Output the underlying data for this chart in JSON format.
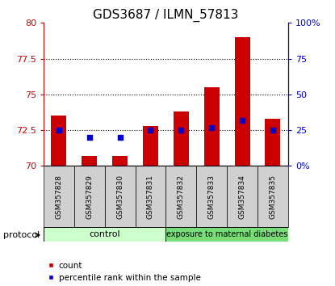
{
  "title": "GDS3687 / ILMN_57813",
  "samples": [
    "GSM357828",
    "GSM357829",
    "GSM357830",
    "GSM357831",
    "GSM357832",
    "GSM357833",
    "GSM357834",
    "GSM357835"
  ],
  "count_values": [
    73.5,
    70.7,
    70.7,
    72.8,
    73.8,
    75.5,
    79.0,
    73.3
  ],
  "percentile_values": [
    25,
    20,
    20,
    25,
    25,
    27,
    32,
    25
  ],
  "ylim_left": [
    70,
    80
  ],
  "ylim_right": [
    0,
    100
  ],
  "yticks_left": [
    70,
    72.5,
    75,
    77.5,
    80
  ],
  "yticks_right": [
    0,
    25,
    50,
    75,
    100
  ],
  "ytick_labels_left": [
    "70",
    "72.5",
    "75",
    "77.5",
    "80"
  ],
  "ytick_labels_right": [
    "0%",
    "25",
    "50",
    "75",
    "100%"
  ],
  "left_color": "#cc0000",
  "right_color": "#0000cc",
  "bar_color": "#cc0000",
  "dot_color": "#0000cc",
  "bar_bottom": 70,
  "control_samples": 4,
  "control_label": "control",
  "treatment_label": "exposure to maternal diabetes",
  "control_color": "#ccffcc",
  "treatment_color": "#77dd77",
  "protocol_label": "protocol",
  "legend_count_label": "count",
  "legend_pct_label": "percentile rank within the sample",
  "bar_width": 0.5,
  "title_fontsize": 11,
  "label_fontsize": 6.5,
  "tick_fontsize": 8,
  "grid_yticks": [
    72.5,
    75,
    77.5
  ]
}
